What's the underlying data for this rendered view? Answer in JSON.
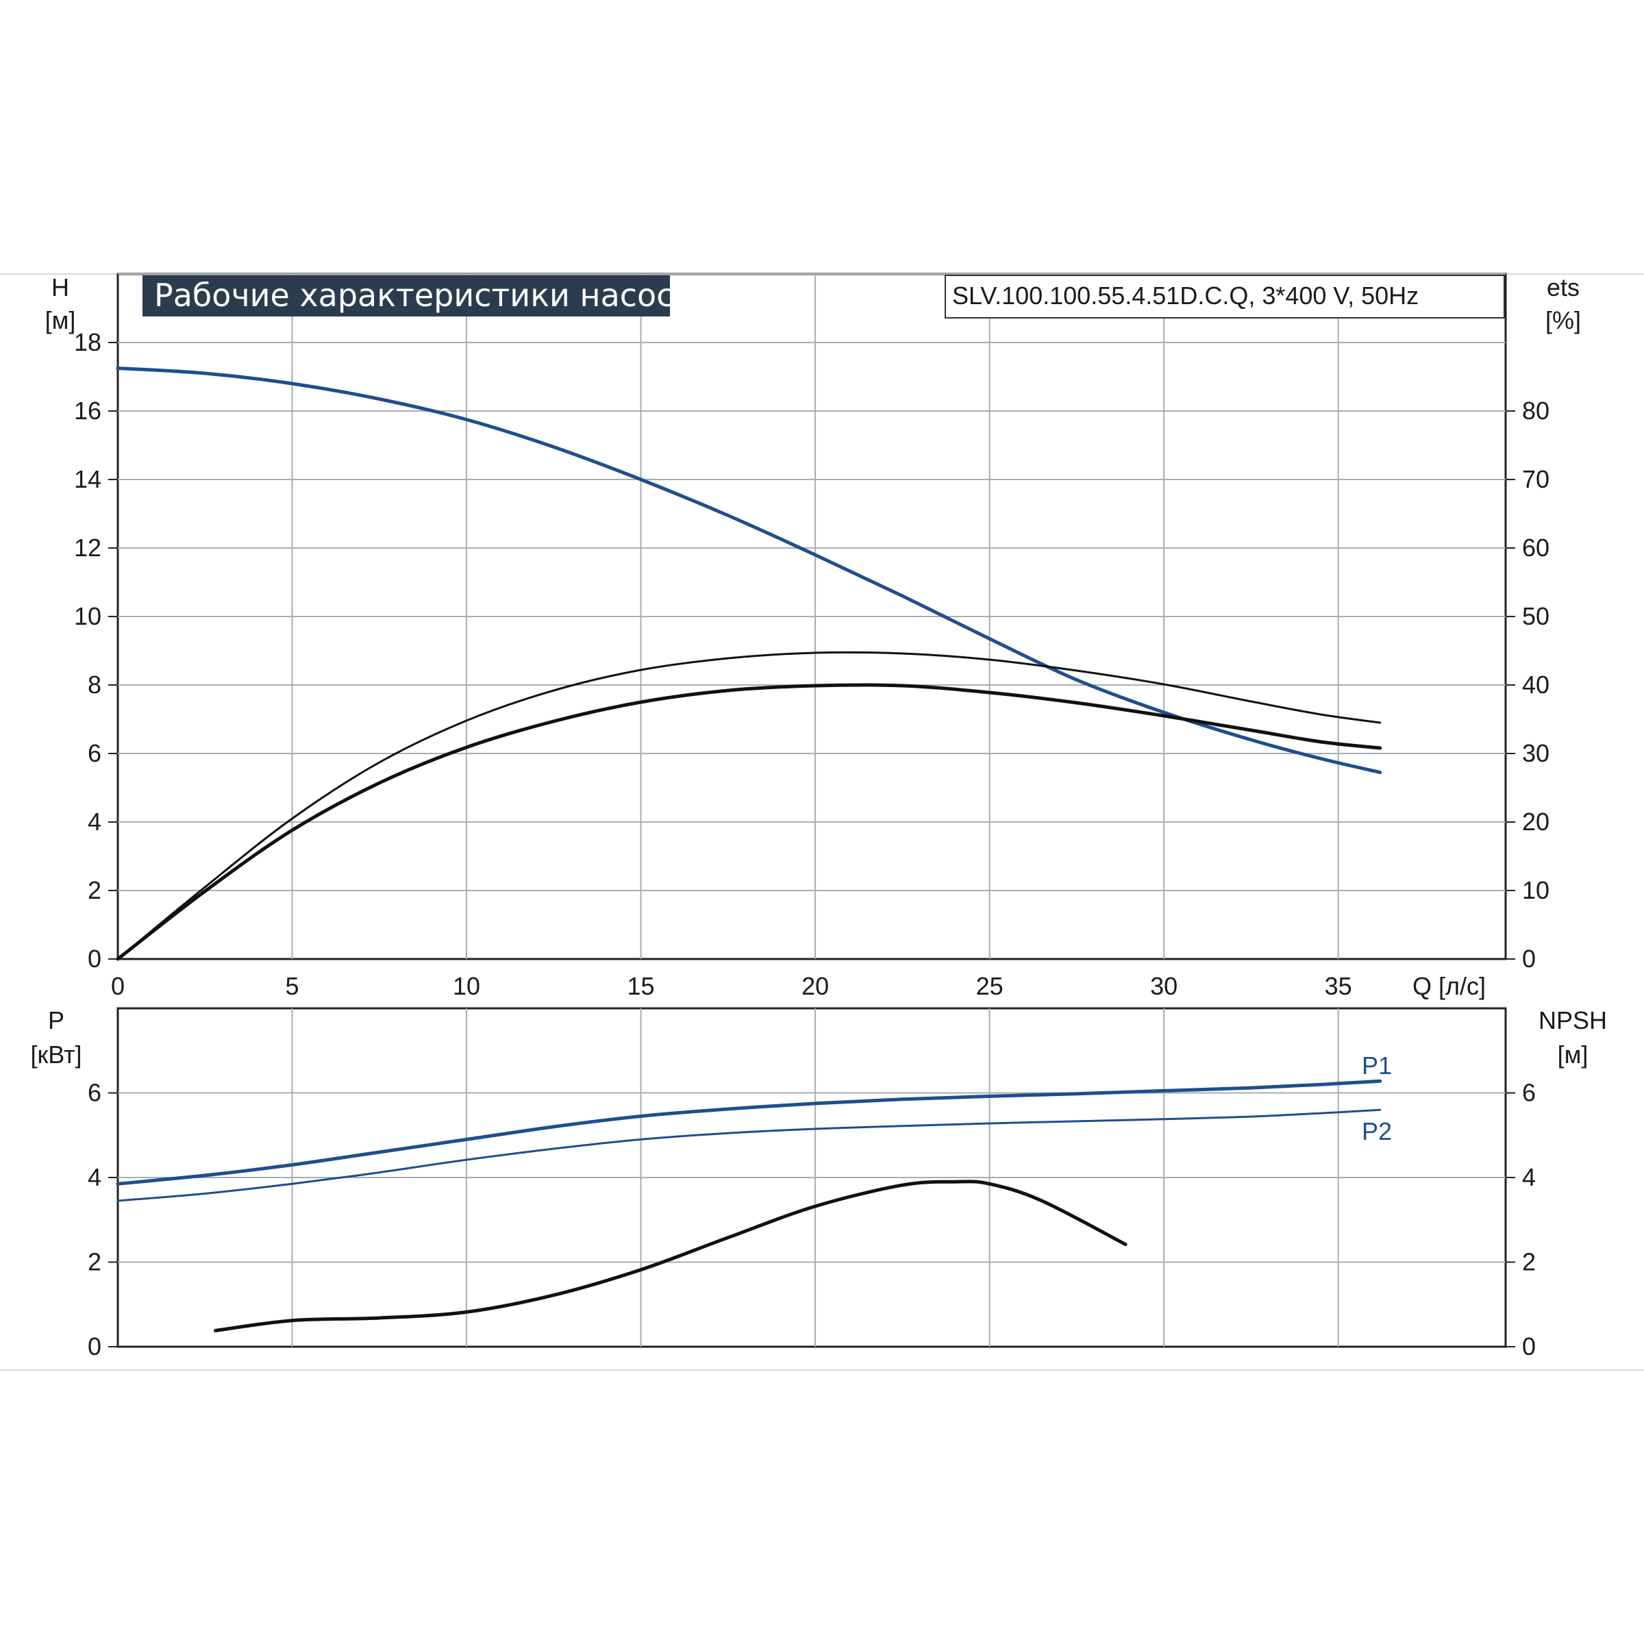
{
  "title": "Рабочие характеристики насоса",
  "model": "SLV.100.100.55.4.51D.C.Q, 3*400 V, 50Hz",
  "colors": {
    "blue": "#1f4e8c",
    "black": "#111111",
    "grid": "#a8adb3",
    "title_bg": "#2d3b4e"
  },
  "chart_data": [
    {
      "type": "line",
      "name_position": "top",
      "xlabel": "Q [л/с]",
      "x_ticks": [
        "0",
        "5",
        "10",
        "15",
        "20",
        "25",
        "30",
        "35"
      ],
      "xlim": [
        0,
        39.8
      ],
      "y_left_label": [
        "H",
        "[м]"
      ],
      "y_left_ticks": [
        "0",
        "2",
        "4",
        "6",
        "8",
        "10",
        "12",
        "14",
        "16",
        "18"
      ],
      "y_left_lim": [
        0,
        20
      ],
      "y_right_label": [
        "ets",
        "[%]"
      ],
      "y_right_ticks": [
        "0",
        "10",
        "20",
        "30",
        "40",
        "50",
        "60",
        "70",
        "80"
      ],
      "y_right_lim": [
        0,
        100
      ],
      "grid": true,
      "series": [
        {
          "axis": "left",
          "color": "blue",
          "width": 5,
          "x": [
            0,
            2.5,
            5,
            7.5,
            10,
            12.5,
            15,
            17.5,
            20,
            22.5,
            25,
            27.5,
            30,
            32.5,
            34.5,
            36.2
          ],
          "y": [
            17.25,
            17.1,
            16.8,
            16.35,
            15.75,
            14.95,
            14.0,
            12.95,
            11.8,
            10.6,
            9.35,
            8.15,
            7.2,
            6.4,
            5.85,
            5.45
          ]
        },
        {
          "axis": "right",
          "color": "black",
          "width": 3,
          "x": [
            0,
            2.5,
            5,
            7.5,
            10,
            12.5,
            15,
            17.5,
            20,
            22.5,
            25,
            27.5,
            30,
            32.5,
            34.5,
            36.2
          ],
          "y": [
            0,
            10.5,
            20.5,
            28.7,
            34.8,
            39.2,
            42.2,
            43.9,
            44.7,
            44.6,
            43.7,
            42.1,
            40.1,
            37.6,
            35.7,
            34.5
          ]
        },
        {
          "axis": "right",
          "color": "black",
          "width": 5,
          "x": [
            0,
            2.5,
            5,
            7.5,
            10,
            12.5,
            15,
            17.5,
            20,
            22.5,
            25,
            27.5,
            30,
            32.5,
            34.5,
            36.2
          ],
          "y": [
            0,
            9.9,
            18.8,
            25.7,
            30.9,
            34.7,
            37.5,
            39.2,
            39.9,
            39.9,
            38.9,
            37.4,
            35.5,
            33.4,
            31.7,
            30.8
          ]
        }
      ]
    },
    {
      "type": "line",
      "name_position": "bottom",
      "xlim": [
        0,
        39.8
      ],
      "y_left_label": [
        "P",
        "[кВт]"
      ],
      "y_left_ticks": [
        "0",
        "2",
        "4",
        "6"
      ],
      "y_left_lim": [
        0,
        8
      ],
      "y_right_label": [
        "NPSH",
        "[м]"
      ],
      "y_right_ticks": [
        "0",
        "2",
        "4",
        "6"
      ],
      "y_right_lim": [
        0,
        8
      ],
      "grid": true,
      "series": [
        {
          "name": "P1",
          "axis": "left",
          "color": "blue",
          "width": 5,
          "x": [
            0,
            2.5,
            5,
            7.5,
            10,
            12.5,
            15,
            17.5,
            20,
            22.5,
            25,
            27.5,
            30,
            32.5,
            34.5,
            36.2
          ],
          "y": [
            3.85,
            4.05,
            4.3,
            4.6,
            4.9,
            5.2,
            5.45,
            5.62,
            5.75,
            5.85,
            5.92,
            5.98,
            6.05,
            6.12,
            6.2,
            6.28
          ]
        },
        {
          "name": "P2",
          "axis": "left",
          "color": "blue",
          "width": 3,
          "x": [
            0,
            2.5,
            5,
            7.5,
            10,
            12.5,
            15,
            17.5,
            20,
            22.5,
            25,
            27.5,
            30,
            32.5,
            34.5,
            36.2
          ],
          "y": [
            3.45,
            3.62,
            3.85,
            4.12,
            4.42,
            4.68,
            4.9,
            5.05,
            5.15,
            5.22,
            5.28,
            5.33,
            5.38,
            5.44,
            5.52,
            5.6
          ]
        },
        {
          "axis": "right",
          "color": "black",
          "width": 5,
          "x": [
            2.8,
            5,
            7.5,
            10,
            12.5,
            15,
            17.5,
            20,
            22.5,
            24,
            25,
            26.5,
            28.9
          ],
          "y": [
            0.38,
            0.62,
            0.68,
            0.82,
            1.22,
            1.82,
            2.58,
            3.32,
            3.82,
            3.9,
            3.85,
            3.45,
            2.42
          ]
        }
      ]
    }
  ]
}
